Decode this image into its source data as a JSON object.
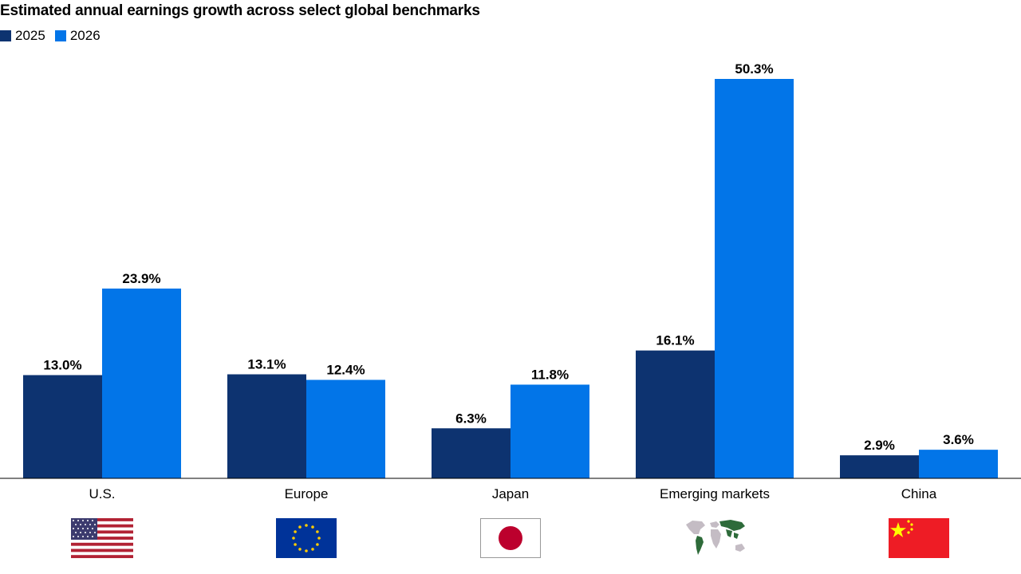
{
  "chart_data": {
    "type": "bar",
    "title": "Estimated annual earnings growth across select global benchmarks",
    "categories": [
      "U.S.",
      "Europe",
      "Japan",
      "Emerging markets",
      "China"
    ],
    "series": [
      {
        "name": "2025",
        "values": [
          13.0,
          13.1,
          6.3,
          16.1,
          2.9
        ],
        "labels": [
          "13.0%",
          "13.1%",
          "6.3%",
          "16.1%",
          "2.9%"
        ],
        "color": "#0d3370"
      },
      {
        "name": "2026",
        "values": [
          23.9,
          12.4,
          11.8,
          50.3,
          3.6
        ],
        "labels": [
          "23.9%",
          "12.4%",
          "11.8%",
          "50.3%",
          "3.6%"
        ],
        "color": "#0275e8"
      }
    ],
    "ylim": [
      0,
      50.3
    ],
    "xlabel": "",
    "ylabel": "",
    "grid": false,
    "legend_position": "top-left",
    "category_icons": [
      "us-flag-icon",
      "eu-flag-icon",
      "japan-flag-icon",
      "world-map-icon",
      "china-flag-icon"
    ]
  }
}
